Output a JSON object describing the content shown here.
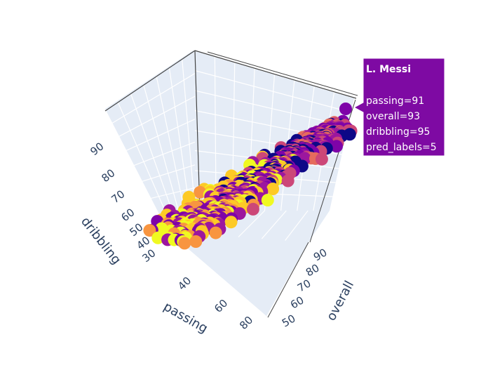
{
  "chart_data": {
    "type": "scatter",
    "dimensions": 3,
    "axes": {
      "x": {
        "label": "passing",
        "ticks": [
          "40",
          "60",
          "80"
        ]
      },
      "y": {
        "label": "overall",
        "ticks": [
          "50",
          "60",
          "70",
          "80",
          "90"
        ]
      },
      "z": {
        "label": "dribbling",
        "ticks": [
          "30",
          "40",
          "50",
          "60",
          "70",
          "80",
          "90"
        ]
      }
    },
    "color_by": "pred_labels",
    "palette": [
      "#0d0887",
      "#7e03a8",
      "#cc4778",
      "#f89540",
      "#f0f921",
      "#9c179e",
      "#e56b5d",
      "#fdca26"
    ],
    "background": "#e5ecf6",
    "grid": true,
    "hover": {
      "name": "L. Messi",
      "lines": [
        "passing=91",
        "overall=93",
        "dribbling=95",
        "pred_labels=5"
      ],
      "color": "#7e0aa3"
    }
  }
}
